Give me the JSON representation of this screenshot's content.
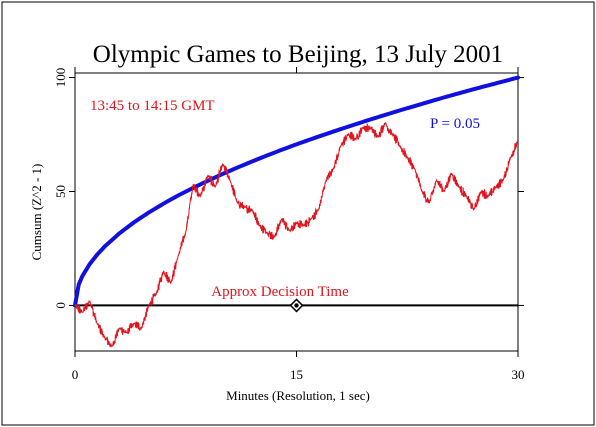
{
  "chart_data": {
    "type": "line",
    "title": "Olympic Games to Beijing, 13 July 2001",
    "subtitle": "13:45 to 14:15 GMT",
    "xlabel": "Minutes (Resolution, 1 sec)",
    "ylabel": "Cumsum (Z^2 - 1)",
    "xlim": [
      0,
      30
    ],
    "ylim": [
      -20,
      102
    ],
    "x_ticks": [
      0,
      15,
      30
    ],
    "y_ticks": [
      0,
      50,
      100
    ],
    "grid": false,
    "series": [
      {
        "color": "#e0141e",
        "x": [
          0,
          0.5,
          1,
          1.5,
          2,
          2.5,
          3,
          3.5,
          4,
          4.5,
          5,
          5.5,
          6,
          6.5,
          7,
          7.5,
          8,
          8.5,
          9,
          9.5,
          10,
          10.5,
          11,
          11.5,
          12,
          12.5,
          13,
          13.5,
          14,
          14.5,
          15,
          15.5,
          16,
          16.5,
          17,
          17.5,
          18,
          18.5,
          19,
          19.5,
          20,
          20.5,
          21,
          21.5,
          22,
          22.5,
          23,
          23.5,
          24,
          24.5,
          25,
          25.5,
          26,
          26.5,
          27,
          27.5,
          28,
          28.5,
          29,
          29.5,
          30
        ],
        "y": [
          0,
          -3,
          2,
          -8,
          -14,
          -18,
          -10,
          -12,
          -8,
          -10,
          0,
          5,
          15,
          10,
          22,
          32,
          53,
          48,
          57,
          52,
          62,
          55,
          45,
          43,
          42,
          35,
          32,
          30,
          38,
          33,
          36,
          35,
          38,
          42,
          55,
          60,
          70,
          75,
          73,
          78,
          78,
          74,
          80,
          75,
          70,
          65,
          60,
          50,
          45,
          55,
          50,
          58,
          52,
          48,
          42,
          50,
          48,
          52,
          55,
          65,
          72
        ]
      },
      {
        "name": "P = 0.05",
        "color": "#1010e0",
        "x": [
          0,
          0.25,
          0.5,
          1,
          1.5,
          2,
          3,
          4,
          5,
          6,
          7,
          8,
          9,
          10,
          11,
          12,
          13,
          14,
          15,
          16,
          17,
          18,
          19,
          20,
          21,
          22,
          23,
          24,
          25,
          26,
          27,
          28,
          29,
          30
        ],
        "y": [
          0,
          9.1,
          12.9,
          18.2,
          22.3,
          25.8,
          31.6,
          36.5,
          40.8,
          44.7,
          48.3,
          51.6,
          54.7,
          57.7,
          60.5,
          63.2,
          65.8,
          68.3,
          70.7,
          73.0,
          75.2,
          77.4,
          79.5,
          81.6,
          83.6,
          85.6,
          87.5,
          89.4,
          91.3,
          93.1,
          94.9,
          96.6,
          98.3,
          100.0
        ]
      }
    ],
    "annotations": [
      {
        "text": "Approx Decision Time",
        "x": 15,
        "y": 0,
        "color": "#e0141e"
      }
    ]
  }
}
